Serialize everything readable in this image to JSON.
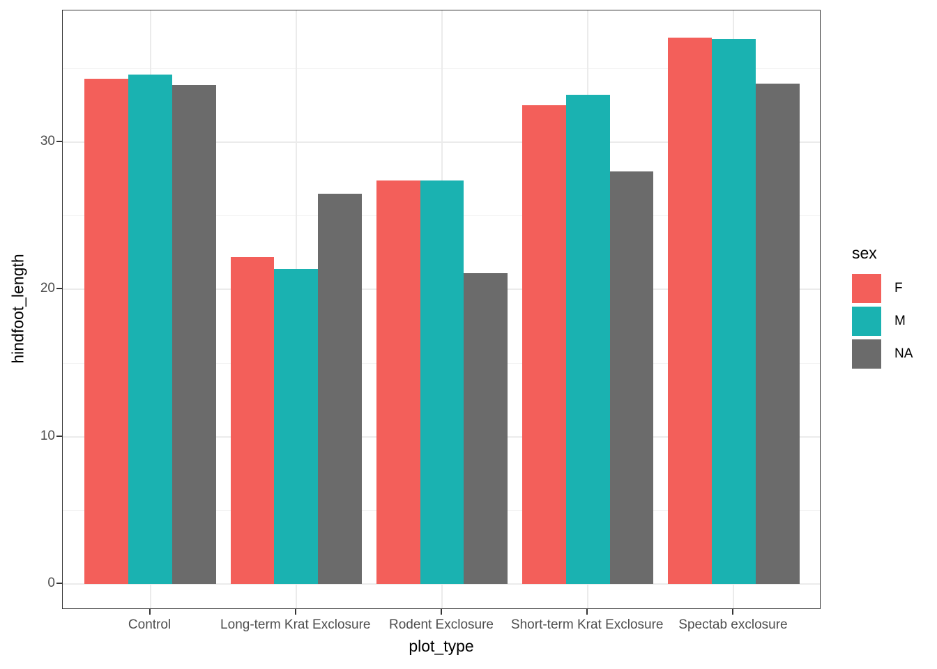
{
  "figure": {
    "background": "#FFFFFF",
    "panel_border_color": "#333333",
    "grid_major_color": "#EBEBEB",
    "grid_minor_color": "#F3F3F3",
    "tick_color": "#333333",
    "tick_label_color": "#4D4D4D",
    "axis_title_color": "#000000"
  },
  "chart_data": {
    "type": "bar",
    "title": "",
    "xlabel": "plot_type",
    "ylabel": "hindfoot_length",
    "categories": [
      "Control",
      "Long-term Krat Exclosure",
      "Rodent Exclosure",
      "Short-term Krat Exclosure",
      "Spectab exclosure"
    ],
    "series": [
      {
        "name": "F",
        "color": "#F35F5A",
        "values": [
          34.3,
          22.2,
          27.4,
          32.5,
          37.1
        ]
      },
      {
        "name": "M",
        "color": "#1AB2B1",
        "values": [
          34.6,
          21.4,
          27.4,
          33.2,
          37.0
        ]
      },
      {
        "name": "NA",
        "color": "#6B6B6B",
        "values": [
          33.9,
          26.5,
          21.1,
          28.0,
          34.0
        ]
      }
    ],
    "y_ticks": [
      0,
      10,
      20,
      30
    ],
    "y_minor_ticks": [
      5,
      15,
      25,
      35
    ],
    "ylim": [
      -1.75,
      38.95
    ],
    "grid": "major+minor, horizontal major/minor + vertical major at category centers",
    "legend": {
      "title": "sex",
      "position": "right",
      "entries": [
        "F",
        "M",
        "NA"
      ]
    }
  }
}
